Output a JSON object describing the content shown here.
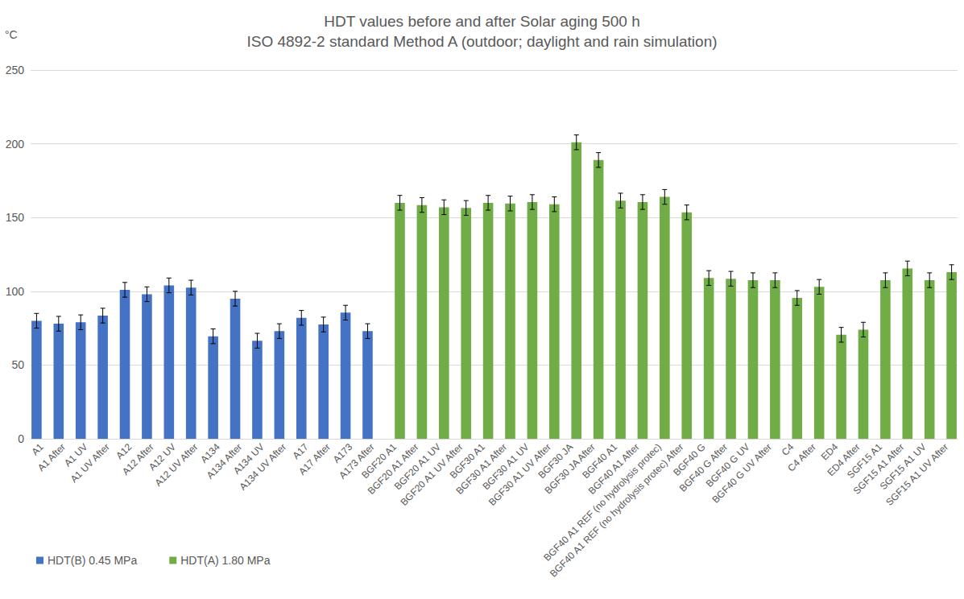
{
  "chart_data": {
    "type": "bar",
    "title": "HDT values before and after Solar aging 500 h",
    "subtitle": "ISO 4892-2 standard Method A (outdoor; daylight and rain simulation)",
    "y_label": "°C",
    "categories": [
      "A1",
      "A1 After",
      "A1 UV",
      "A1 UV After",
      "A12",
      "A12 After",
      "A12 UV",
      "A12 UV After",
      "A134",
      "A134 After",
      "A134 UV",
      "A134 UV After",
      "A17",
      "A17 After",
      "A173",
      "A173 After",
      "BGF20 A1",
      "BGF20 A1 After",
      "BGF20 A1 UV",
      "BGF20 A1 UV After",
      "BGF30 A1",
      "BGF30 A1 After",
      "BGF30 A1 UV",
      "BGF30 A1 UV After",
      "BGF30 JA",
      "BGF30 JA After",
      "BGF40 A1",
      "BGF40 A1 After",
      "BGF40 A1 REF (no hydrolysis protec)",
      "BGF40 A1 REF (no hydrolysis protec) After",
      "BGF40 G",
      "BGF40 G After",
      "BGF40 G UV",
      "BGF40 G UV After",
      "C4",
      "C4 After",
      "ED4",
      "ED4 After",
      "SGF15 A1",
      "SGF15 A1 After",
      "SGF15 A1 UV",
      "SGF15 A1 UV After"
    ],
    "series": [
      {
        "name": "HDT(B) 0.45 MPa",
        "color": "#4472c4",
        "values": [
          80,
          78,
          79,
          83.5,
          101,
          98,
          104,
          102.5,
          69.5,
          95,
          66.5,
          73,
          82,
          77.5,
          85.5,
          73,
          null,
          null,
          null,
          null,
          null,
          null,
          null,
          null,
          null,
          null,
          null,
          null,
          null,
          null,
          null,
          null,
          null,
          null,
          null,
          null,
          null,
          null,
          null,
          null,
          null,
          null
        ],
        "errors": [
          5,
          5,
          5,
          5,
          5,
          5,
          5,
          5,
          5,
          5,
          5,
          5,
          5,
          5,
          5,
          5,
          null,
          null,
          null,
          null,
          null,
          null,
          null,
          null,
          null,
          null,
          null,
          null,
          null,
          null,
          null,
          null,
          null,
          null,
          null,
          null,
          null,
          null,
          null,
          null,
          null,
          null
        ]
      },
      {
        "name": "HDT(A) 1.80 MPa",
        "color": "#70ad47",
        "values": [
          null,
          null,
          null,
          null,
          null,
          null,
          null,
          null,
          null,
          null,
          null,
          null,
          null,
          null,
          null,
          null,
          160,
          158.5,
          157,
          156.5,
          160,
          159.5,
          160.5,
          159,
          201,
          189,
          161.5,
          160.5,
          164,
          153.5,
          109,
          108.5,
          107.5,
          107.5,
          95.5,
          103,
          70.5,
          74,
          107.5,
          115.5,
          107.5,
          113
        ],
        "errors": [
          null,
          null,
          null,
          null,
          null,
          null,
          null,
          null,
          null,
          null,
          null,
          null,
          null,
          null,
          null,
          null,
          5,
          5,
          5,
          5,
          5,
          5,
          5,
          5,
          5,
          5,
          5,
          5,
          5,
          5,
          5,
          5,
          5,
          5,
          5,
          5,
          5,
          5,
          5,
          5,
          5,
          5
        ]
      }
    ],
    "ylim": [
      0,
      250
    ],
    "yticks": [
      0,
      50,
      100,
      150,
      200,
      250
    ],
    "grid": true,
    "legend": "bottom-left"
  }
}
